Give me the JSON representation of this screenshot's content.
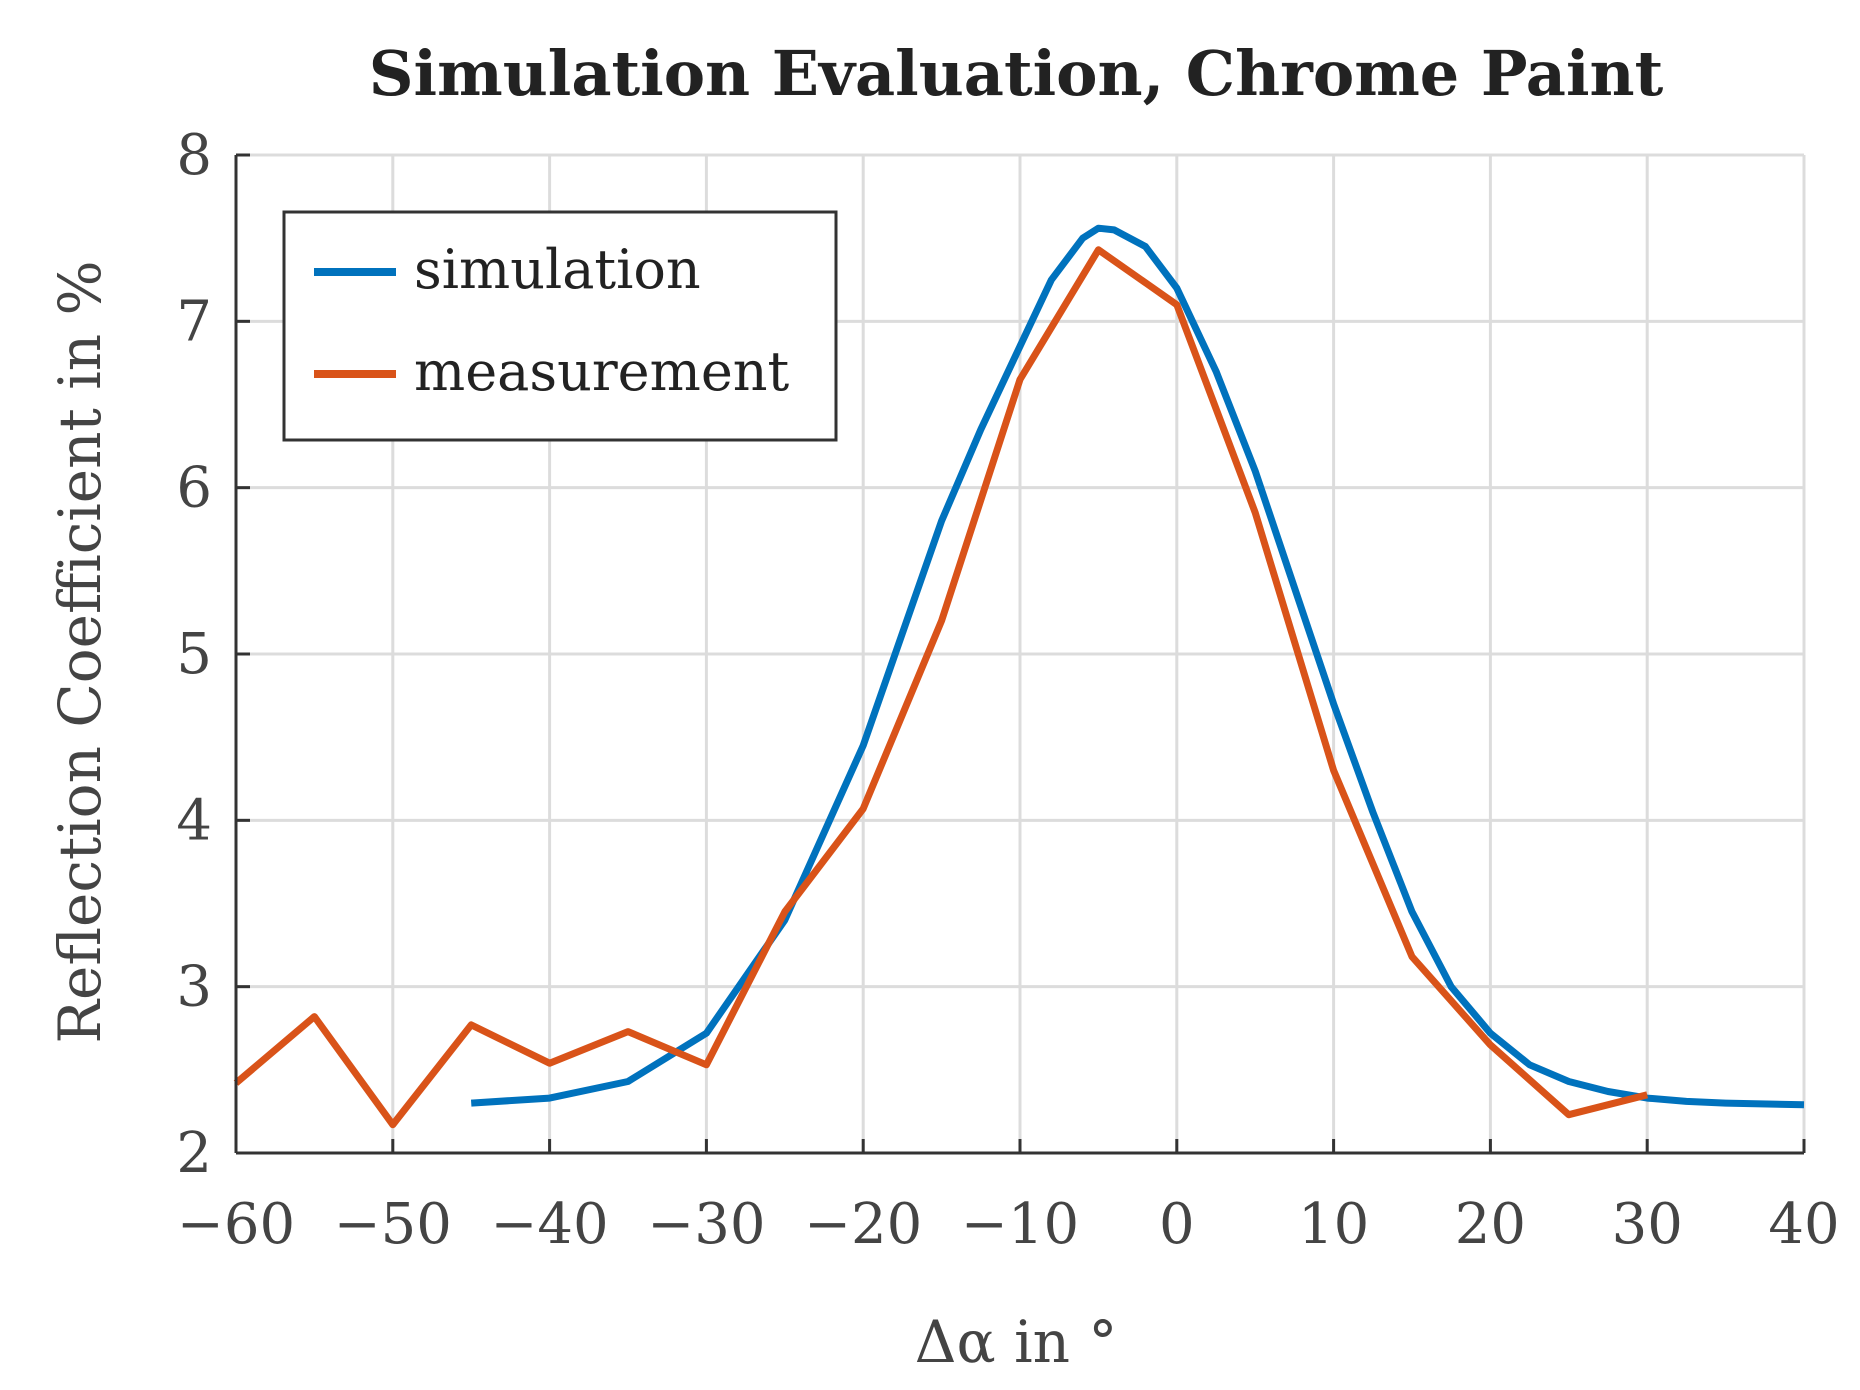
{
  "chart_data": {
    "type": "line",
    "title": "Simulation Evaluation, Chrome Paint",
    "xlabel": "Δα in °",
    "ylabel": "Reflection Coefficient in %",
    "xlim": [
      -60,
      40
    ],
    "ylim": [
      2,
      8
    ],
    "xticks": [
      -60,
      -50,
      -40,
      -30,
      -20,
      -10,
      0,
      10,
      20,
      30,
      40
    ],
    "yticks": [
      2,
      3,
      4,
      5,
      6,
      7,
      8
    ],
    "xtick_labels": [
      "−60",
      "−50",
      "−40",
      "−30",
      "−20",
      "−10",
      "0",
      "10",
      "20",
      "30",
      "40"
    ],
    "ytick_labels": [
      "2",
      "3",
      "4",
      "5",
      "6",
      "7",
      "8"
    ],
    "grid": true,
    "legend_position": "top-left",
    "series": [
      {
        "name": "simulation",
        "color": "#0072BD",
        "x": [
          -45,
          -40,
          -35,
          -30,
          -25,
          -20,
          -15,
          -12.5,
          -10,
          -8,
          -6,
          -5,
          -4,
          -2,
          0,
          2.5,
          5,
          7.5,
          10,
          12.5,
          15,
          17.5,
          20,
          22.5,
          25,
          27.5,
          30,
          32.5,
          35,
          40
        ],
        "y": [
          2.3,
          2.33,
          2.43,
          2.72,
          3.4,
          4.45,
          5.8,
          6.35,
          6.85,
          7.25,
          7.5,
          7.56,
          7.55,
          7.45,
          7.2,
          6.7,
          6.1,
          5.4,
          4.7,
          4.05,
          3.45,
          3.0,
          2.72,
          2.53,
          2.43,
          2.37,
          2.33,
          2.31,
          2.3,
          2.29
        ]
      },
      {
        "name": "measurement",
        "color": "#D95319",
        "x": [
          -60,
          -55,
          -50,
          -45,
          -40,
          -35,
          -30,
          -25,
          -20,
          -15,
          -10,
          -5,
          0,
          5,
          10,
          15,
          20,
          25,
          30
        ],
        "y": [
          2.42,
          2.82,
          2.17,
          2.77,
          2.54,
          2.73,
          2.53,
          3.45,
          4.07,
          5.2,
          6.65,
          7.43,
          7.1,
          5.85,
          4.3,
          3.18,
          2.65,
          2.23,
          2.35
        ]
      }
    ]
  }
}
